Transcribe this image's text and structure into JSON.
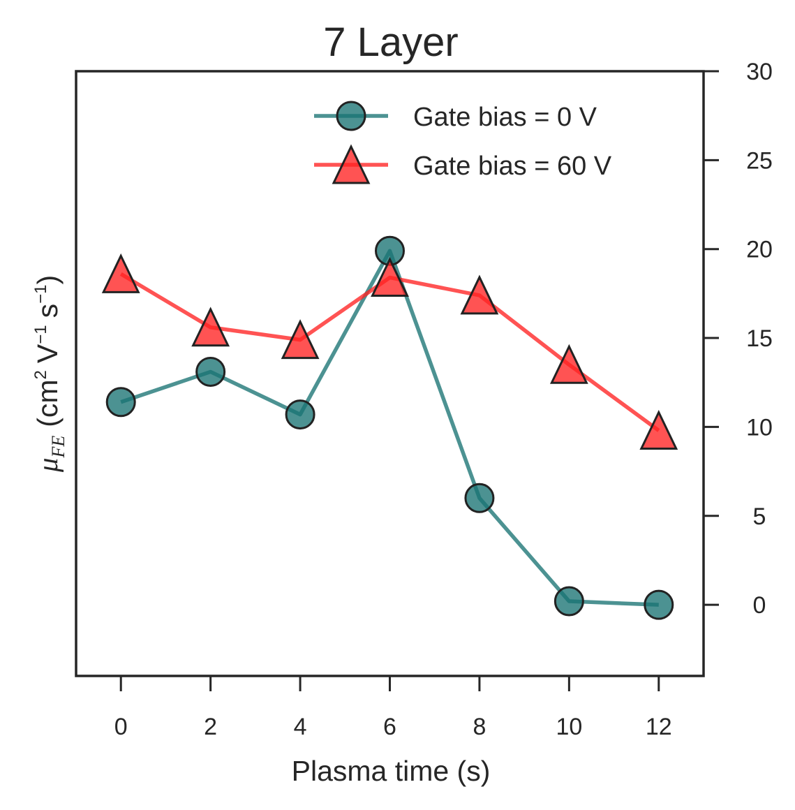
{
  "chart_data": {
    "type": "line",
    "title": "7 Layer",
    "xlabel": "Plasma time (s)",
    "ylabel_math": "μ",
    "ylabel_sub": "FE",
    "ylabel_units_pre": "(cm",
    "ylabel_units_exp1": "2",
    "ylabel_units_mid": "V",
    "ylabel_units_exp2": "−1",
    "ylabel_units_s": "s",
    "ylabel_units_exp3": "−1",
    "ylabel_units_post": ")",
    "xlim": [
      -1,
      13
    ],
    "ylim": [
      -4,
      30
    ],
    "x_ticks": [
      0,
      2,
      4,
      6,
      8,
      10,
      12
    ],
    "x_tick_labels": [
      "0",
      "2",
      "4",
      "6",
      "8",
      "10",
      "12"
    ],
    "y_ticks": [
      0,
      5,
      10,
      15,
      20,
      25,
      30
    ],
    "y_tick_labels": [
      "0",
      "5",
      "10",
      "15",
      "20",
      "25",
      "30"
    ],
    "y_axis_side": "right",
    "grid": false,
    "legend_position": "top-right",
    "x": [
      0,
      2,
      4,
      6,
      8,
      10,
      12
    ],
    "series": [
      {
        "name": "Gate bias = 0 V",
        "marker": "circle",
        "color": "#1a7373",
        "values": [
          11.4,
          13.1,
          10.7,
          19.9,
          6.0,
          0.2,
          0.0
        ]
      },
      {
        "name": "Gate bias = 60 V",
        "marker": "triangle",
        "color": "#ff2222",
        "values": [
          18.6,
          15.6,
          14.9,
          18.4,
          17.4,
          13.5,
          9.8
        ]
      }
    ]
  }
}
